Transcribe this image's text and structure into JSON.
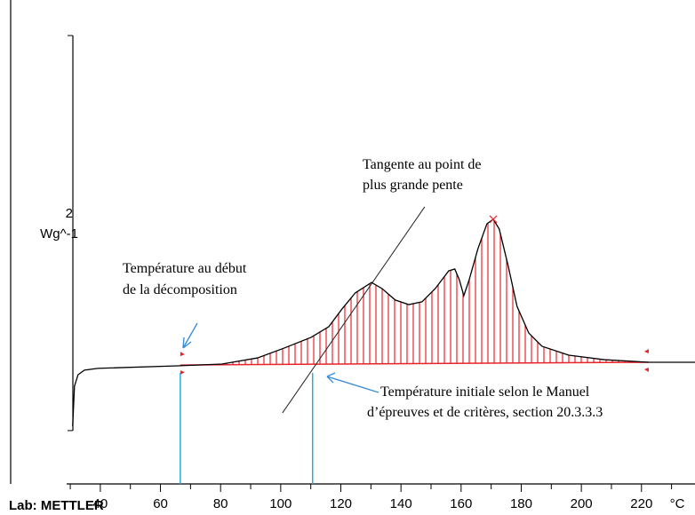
{
  "chart_data": {
    "type": "line",
    "ylabel": "Wg^-1",
    "xlabel": "°C",
    "scale_bar_value": 2,
    "scale_bar_bottom": -0.337,
    "footer": "Lab: METTLER",
    "xlim": [
      28.8,
      237.8
    ],
    "ylim": [
      -0.607,
      1.843
    ],
    "xticks": [
      40,
      60,
      80,
      100,
      120,
      140,
      160,
      180,
      200,
      220
    ],
    "xminor_ticks": [
      30,
      50,
      70,
      90,
      110,
      130,
      150,
      170,
      190,
      210,
      230
    ],
    "series": [
      {
        "color": "#000000",
        "x": [
          30.8,
          31.4,
          32.6,
          34.7,
          39.1,
          65.7,
          80.5,
          92.3,
          101.2,
          110.1,
          116.0,
          120.4,
          124.8,
          130.2,
          133.7,
          138.1,
          142.6,
          147.0,
          151.4,
          155.9,
          157.9,
          159.4,
          160.9,
          162.7,
          165.6,
          168.6,
          170.7,
          172.7,
          175.7,
          178.6,
          182.5,
          186.9,
          195.8,
          207.6,
          222.4,
          237.8
        ],
        "values": [
          -0.315,
          -0.112,
          -0.054,
          -0.031,
          -0.022,
          -0.009,
          0,
          0.031,
          0.081,
          0.135,
          0.189,
          0.279,
          0.36,
          0.413,
          0.382,
          0.324,
          0.301,
          0.315,
          0.382,
          0.472,
          0.481,
          0.427,
          0.346,
          0.427,
          0.584,
          0.71,
          0.733,
          0.683,
          0.494,
          0.292,
          0.157,
          0.09,
          0.045,
          0.022,
          0.009,
          0.009
        ]
      }
    ],
    "area_color": "#e8242a",
    "integration_limits": {
      "x": [
        66.6,
        222.4
      ],
      "y": [
        -0.005,
        0.009
      ]
    },
    "tangent": {
      "x": [
        100.6,
        147.9
      ],
      "y": [
        -0.247,
        0.796
      ]
    },
    "marker_lines": {
      "color": "#29a8e0",
      "x": [
        66.6,
        110.6
      ],
      "y": [
        -0.045,
        -0.045
      ]
    },
    "annotations": [
      {
        "lines": [
          "Tangente au point de",
          "plus grande pente"
        ]
      },
      {
        "lines": [
          "Température au début",
          "de la décomposition"
        ]
      },
      {
        "lines": [
          "Température initiale selon le Manuel",
          "d’épreuves et de critères, section 20.3.3.3"
        ]
      }
    ]
  }
}
